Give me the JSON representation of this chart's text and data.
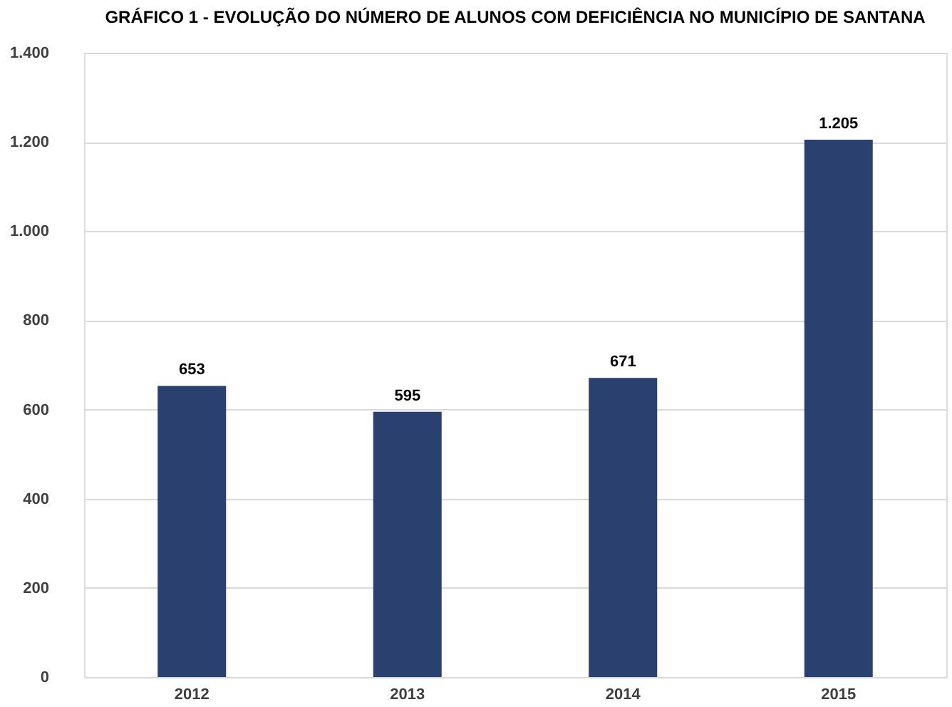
{
  "chart_data": {
    "type": "bar",
    "title": "GRÁFICO 1 - EVOLUÇÃO DO NÚMERO DE ALUNOS COM DEFICIÊNCIA NO MUNICÍPIO DE SANTANA",
    "categories": [
      "2012",
      "2013",
      "2014",
      "2015"
    ],
    "values": [
      653,
      595,
      671,
      1205
    ],
    "value_labels": [
      "653",
      "595",
      "671",
      "1.205"
    ],
    "color": "#2a4170",
    "ylim": [
      0,
      1400
    ],
    "yticks": [
      0,
      200,
      400,
      600,
      800,
      {
        "value": 1000,
        "label": "1.000"
      },
      {
        "value": 1200,
        "label": "1.200"
      },
      {
        "value": 1400,
        "label": "1.400"
      }
    ],
    "grid": "y"
  }
}
